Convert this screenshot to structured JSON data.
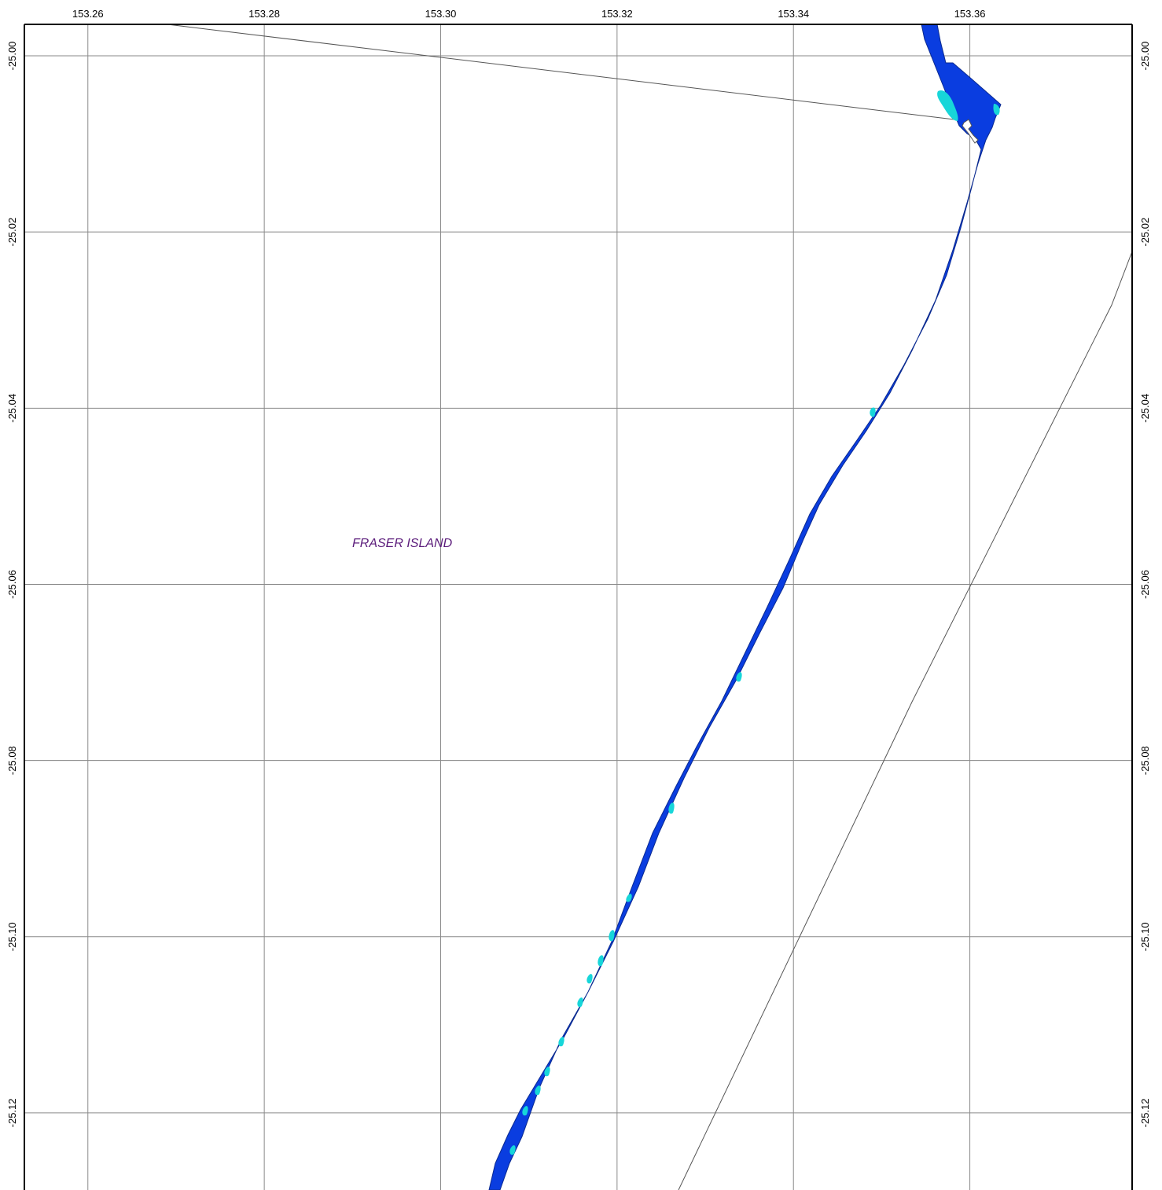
{
  "map": {
    "place_label": "FRASER ISLAND",
    "longitude_ticks": [
      "153.26",
      "153.28",
      "153.30",
      "153.32",
      "153.34",
      "153.36"
    ],
    "latitude_ticks": [
      "-25.00",
      "-25.02",
      "-25.04",
      "-25.06",
      "-25.08",
      "-25.10",
      "-25.12"
    ],
    "colors": {
      "channel_fill": "#0a3de0",
      "shallow_fill": "#17d6d9",
      "grid_line": "#8a8a8a",
      "boundary_line": "#555555",
      "frame": "#000000",
      "place_label": "#5a1a7a"
    }
  }
}
